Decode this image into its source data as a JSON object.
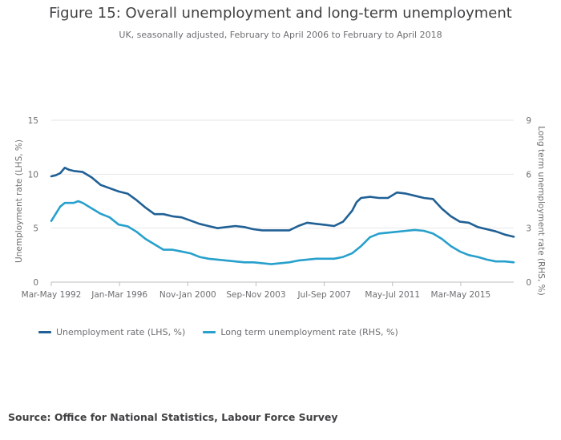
{
  "title": "Figure 15: Overall unemployment and long-term unemployment",
  "subtitle": "UK, seasonally adjusted, February to April 2006 to February to April 2018",
  "source": "Source: Office for National Statistics, Labour Force Survey",
  "colors": {
    "series1": "#206095",
    "series2": "#27a0cc",
    "grid": "#e6e6e6",
    "axis": "#bcbec0"
  },
  "chart_data": {
    "type": "line",
    "xlabel": "",
    "ylabel_left": "Unemployment rate (LHS, %)",
    "ylabel_right": "Long term unemployment rate (RHS, %)",
    "x_range": [
      1992.25,
      2018.0
    ],
    "ylim_left": [
      0,
      15
    ],
    "ylim_right": [
      0,
      9
    ],
    "yticks_left": [
      "0",
      "5",
      "10",
      "15"
    ],
    "yticks_right": [
      "0",
      "3",
      "6",
      "9"
    ],
    "x_tick_labels": [
      {
        "label": "Mar-May 1992",
        "x": 1992.25
      },
      {
        "label": "Jan-Mar 1996",
        "x": 1996.05
      },
      {
        "label": "Nov-Jan 2000",
        "x": 1999.85
      },
      {
        "label": "Sep-Nov 2003",
        "x": 2003.65
      },
      {
        "label": "Jul-Sep 2007",
        "x": 2007.45
      },
      {
        "label": "May-Jul 2011",
        "x": 2011.25
      },
      {
        "label": "Mar-May 2015",
        "x": 2015.05
      }
    ],
    "legend_position": "bottom-left",
    "series": [
      {
        "name": "Unemployment rate (LHS, %)",
        "axis": "left",
        "points": [
          [
            1992.25,
            9.8
          ],
          [
            1992.5,
            9.9
          ],
          [
            1992.75,
            10.1
          ],
          [
            1993.0,
            10.6
          ],
          [
            1993.25,
            10.4
          ],
          [
            1993.5,
            10.3
          ],
          [
            1994.0,
            10.2
          ],
          [
            1994.5,
            9.7
          ],
          [
            1995.0,
            9.0
          ],
          [
            1995.5,
            8.7
          ],
          [
            1996.0,
            8.4
          ],
          [
            1996.5,
            8.2
          ],
          [
            1997.0,
            7.6
          ],
          [
            1997.5,
            6.9
          ],
          [
            1998.0,
            6.3
          ],
          [
            1998.5,
            6.3
          ],
          [
            1999.0,
            6.1
          ],
          [
            1999.5,
            6.0
          ],
          [
            2000.0,
            5.7
          ],
          [
            2000.5,
            5.4
          ],
          [
            2001.0,
            5.2
          ],
          [
            2001.5,
            5.0
          ],
          [
            2002.0,
            5.1
          ],
          [
            2002.5,
            5.2
          ],
          [
            2003.0,
            5.1
          ],
          [
            2003.5,
            4.9
          ],
          [
            2004.0,
            4.8
          ],
          [
            2004.5,
            4.8
          ],
          [
            2005.0,
            4.8
          ],
          [
            2005.5,
            4.8
          ],
          [
            2006.0,
            5.2
          ],
          [
            2006.5,
            5.5
          ],
          [
            2007.0,
            5.4
          ],
          [
            2007.5,
            5.3
          ],
          [
            2008.0,
            5.2
          ],
          [
            2008.5,
            5.6
          ],
          [
            2009.0,
            6.6
          ],
          [
            2009.25,
            7.4
          ],
          [
            2009.5,
            7.8
          ],
          [
            2010.0,
            7.9
          ],
          [
            2010.5,
            7.8
          ],
          [
            2011.0,
            7.8
          ],
          [
            2011.5,
            8.3
          ],
          [
            2012.0,
            8.2
          ],
          [
            2012.5,
            8.0
          ],
          [
            2013.0,
            7.8
          ],
          [
            2013.5,
            7.7
          ],
          [
            2014.0,
            6.8
          ],
          [
            2014.5,
            6.1
          ],
          [
            2015.0,
            5.6
          ],
          [
            2015.5,
            5.5
          ],
          [
            2016.0,
            5.1
          ],
          [
            2016.5,
            4.9
          ],
          [
            2017.0,
            4.7
          ],
          [
            2017.5,
            4.4
          ],
          [
            2018.0,
            4.2
          ]
        ]
      },
      {
        "name": "Long term unemployment rate (RHS, %)",
        "axis": "right",
        "points": [
          [
            1992.25,
            3.4
          ],
          [
            1992.5,
            3.8
          ],
          [
            1992.75,
            4.2
          ],
          [
            1993.0,
            4.4
          ],
          [
            1993.5,
            4.4
          ],
          [
            1993.75,
            4.5
          ],
          [
            1994.0,
            4.4
          ],
          [
            1994.5,
            4.1
          ],
          [
            1995.0,
            3.8
          ],
          [
            1995.5,
            3.6
          ],
          [
            1996.0,
            3.2
          ],
          [
            1996.5,
            3.1
          ],
          [
            1997.0,
            2.8
          ],
          [
            1997.5,
            2.4
          ],
          [
            1998.0,
            2.1
          ],
          [
            1998.5,
            1.8
          ],
          [
            1999.0,
            1.8
          ],
          [
            1999.5,
            1.7
          ],
          [
            2000.0,
            1.6
          ],
          [
            2000.5,
            1.4
          ],
          [
            2001.0,
            1.3
          ],
          [
            2001.5,
            1.25
          ],
          [
            2002.0,
            1.2
          ],
          [
            2002.5,
            1.15
          ],
          [
            2003.0,
            1.1
          ],
          [
            2003.5,
            1.1
          ],
          [
            2004.0,
            1.05
          ],
          [
            2004.5,
            1.0
          ],
          [
            2005.0,
            1.05
          ],
          [
            2005.5,
            1.1
          ],
          [
            2006.0,
            1.2
          ],
          [
            2006.5,
            1.25
          ],
          [
            2007.0,
            1.3
          ],
          [
            2007.5,
            1.3
          ],
          [
            2008.0,
            1.3
          ],
          [
            2008.5,
            1.4
          ],
          [
            2009.0,
            1.6
          ],
          [
            2009.5,
            2.0
          ],
          [
            2010.0,
            2.5
          ],
          [
            2010.5,
            2.7
          ],
          [
            2011.0,
            2.75
          ],
          [
            2011.5,
            2.8
          ],
          [
            2012.0,
            2.85
          ],
          [
            2012.5,
            2.9
          ],
          [
            2013.0,
            2.85
          ],
          [
            2013.5,
            2.7
          ],
          [
            2014.0,
            2.4
          ],
          [
            2014.5,
            2.0
          ],
          [
            2015.0,
            1.7
          ],
          [
            2015.5,
            1.5
          ],
          [
            2016.0,
            1.4
          ],
          [
            2016.5,
            1.25
          ],
          [
            2017.0,
            1.15
          ],
          [
            2017.5,
            1.15
          ],
          [
            2018.0,
            1.1
          ]
        ]
      }
    ]
  }
}
